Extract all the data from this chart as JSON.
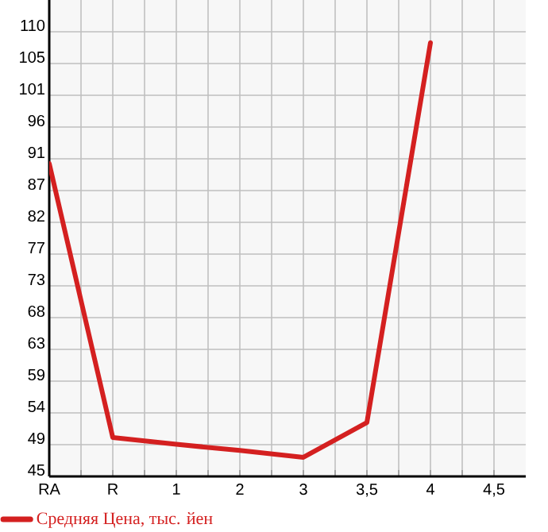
{
  "chart_data": {
    "type": "line",
    "categories": [
      "RA",
      "R",
      "1",
      "2",
      "3",
      "3,5",
      "4",
      "4,5"
    ],
    "series": [
      {
        "name": "Средняя Цена, тыс. йен",
        "color": "#d42020",
        "values": [
          90.6,
          50.5,
          49.5,
          48.6,
          47.6,
          52.7,
          108.3,
          null
        ]
      }
    ],
    "ylim": [
      44.8,
      114.55
    ],
    "yticks": [
      {
        "value": 44.8,
        "label": "45"
      },
      {
        "value": 49.45,
        "label": "49"
      },
      {
        "value": 54.1,
        "label": "54"
      },
      {
        "value": 58.75,
        "label": "59"
      },
      {
        "value": 63.4,
        "label": "63"
      },
      {
        "value": 68.05,
        "label": "68"
      },
      {
        "value": 72.7,
        "label": "73"
      },
      {
        "value": 77.35,
        "label": "77"
      },
      {
        "value": 82.0,
        "label": "82"
      },
      {
        "value": 86.65,
        "label": "87"
      },
      {
        "value": 91.3,
        "label": "91"
      },
      {
        "value": 95.95,
        "label": "96"
      },
      {
        "value": 100.6,
        "label": "101"
      },
      {
        "value": 105.25,
        "label": "105"
      },
      {
        "value": 109.9,
        "label": "110"
      }
    ],
    "grid": true,
    "legend": "bottom",
    "marker": "none",
    "line_style": "solid"
  }
}
